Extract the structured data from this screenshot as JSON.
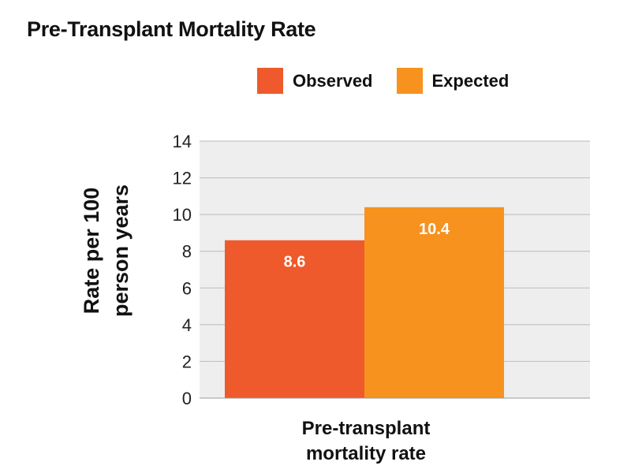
{
  "chart_data": {
    "type": "bar",
    "title": "Pre-Transplant Mortality Rate",
    "categories": [
      "Pre-transplant mortality rate"
    ],
    "series": [
      {
        "name": "Observed",
        "values": [
          8.6
        ],
        "color": "#EE5A2C",
        "data_label": "8.6"
      },
      {
        "name": "Expected",
        "values": [
          10.4
        ],
        "color": "#F7921E",
        "data_label": "10.4"
      }
    ],
    "xlabel_lines": [
      "Pre-transplant",
      "mortality rate"
    ],
    "ylabel_lines": [
      "Rate per 100",
      "person years"
    ],
    "ylim": [
      0,
      14
    ],
    "yticks": [
      "0",
      "2",
      "4",
      "6",
      "8",
      "10",
      "12",
      "14"
    ],
    "grid": true,
    "legend": "top",
    "plot_background": "#EEEEEE",
    "grid_color": "#BBBBBB"
  }
}
